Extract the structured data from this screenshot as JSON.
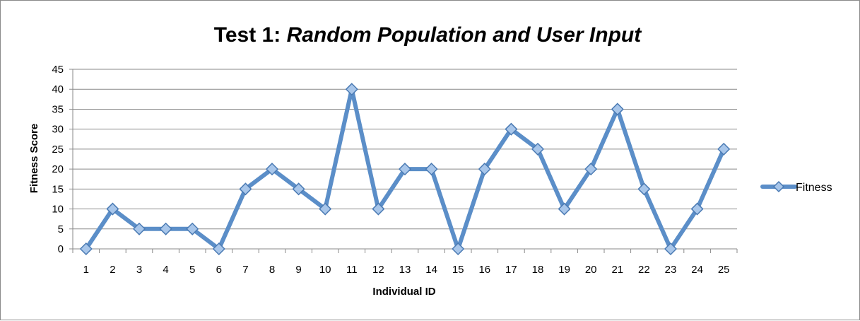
{
  "chart_data": {
    "type": "line",
    "title": {
      "prefix": "Test 1: ",
      "emphasis": "Random Population and User Input"
    },
    "xlabel": "Individual ID",
    "ylabel": "Fitness Score",
    "categories": [
      "1",
      "2",
      "3",
      "4",
      "5",
      "6",
      "7",
      "8",
      "9",
      "10",
      "11",
      "12",
      "13",
      "14",
      "15",
      "16",
      "17",
      "18",
      "19",
      "20",
      "21",
      "22",
      "23",
      "24",
      "25"
    ],
    "series": [
      {
        "name": "Fitness",
        "values": [
          0,
          10,
          5,
          5,
          5,
          0,
          15,
          20,
          15,
          10,
          40,
          10,
          20,
          20,
          0,
          20,
          30,
          25,
          10,
          20,
          35,
          15,
          0,
          10,
          25
        ]
      }
    ],
    "ylim": [
      0,
      45
    ],
    "yticks": [
      "0",
      "5",
      "10",
      "15",
      "20",
      "25",
      "30",
      "35",
      "40",
      "45"
    ],
    "grid": true,
    "legend_position": "right",
    "colors": {
      "line": "#5b8ec8",
      "marker_fill": "#a8c6ea",
      "marker_stroke": "#4a7ab3",
      "grid": "#8a8a8a"
    }
  }
}
